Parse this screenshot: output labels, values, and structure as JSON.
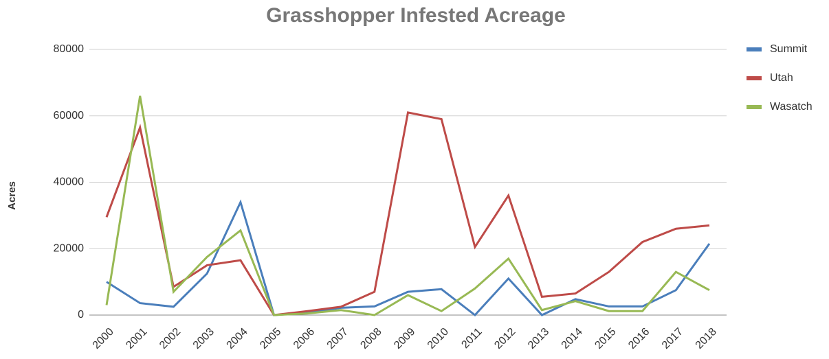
{
  "chart_data": {
    "type": "line",
    "title": "Grasshopper Infested Acreage",
    "y_label": "Acres",
    "categories": [
      "2000",
      "2001",
      "2002",
      "2003",
      "2004",
      "2005",
      "2006",
      "2007",
      "2008",
      "2009",
      "2010",
      "2011",
      "2012",
      "2013",
      "2014",
      "2015",
      "2016",
      "2017",
      "2018"
    ],
    "series": [
      {
        "name": "Summit",
        "color": "#4a7ebb",
        "values": [
          10000,
          3600,
          2500,
          12500,
          34000,
          0,
          700,
          2200,
          2600,
          7000,
          7800,
          0,
          11000,
          0,
          4800,
          2600,
          2600,
          7500,
          21500
        ]
      },
      {
        "name": "Utah",
        "color": "#be4b48",
        "values": [
          29500,
          56500,
          8500,
          15000,
          16500,
          0,
          1200,
          2500,
          7000,
          61000,
          59000,
          20500,
          36000,
          5500,
          6500,
          13000,
          22000,
          26000,
          27000
        ]
      },
      {
        "name": "Wasatch",
        "color": "#98b954",
        "values": [
          3000,
          66000,
          7000,
          17500,
          25500,
          0,
          500,
          1500,
          0,
          6000,
          1200,
          8000,
          17000,
          1500,
          4200,
          1200,
          1200,
          13000,
          7500
        ]
      }
    ],
    "ylim": [
      0,
      80000
    ],
    "yticks": [
      0,
      20000,
      40000,
      60000,
      80000
    ],
    "grid": true,
    "legend": "right"
  }
}
